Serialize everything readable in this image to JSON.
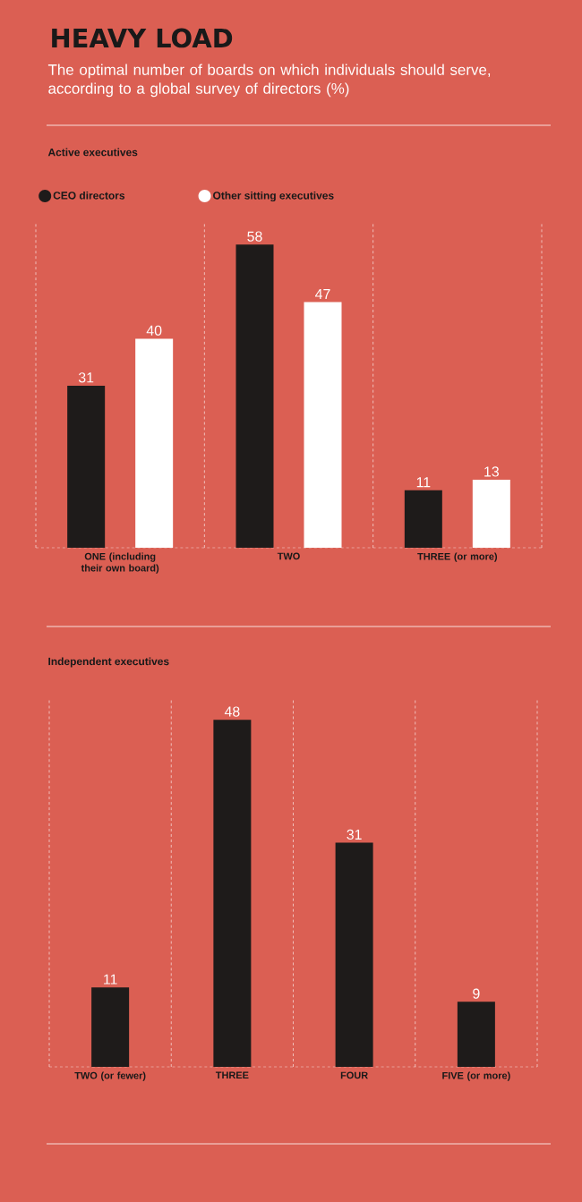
{
  "chart_data": [
    {
      "type": "bar",
      "title": "HEAVY LOAD",
      "subtitle": "The optimal number of boards on which individuals should serve, according to a global survey of directors (%)",
      "annotations": [
        "Active executives"
      ],
      "categories": [
        "ONE (including their own board)",
        "TWO",
        "THREE (or more)"
      ],
      "series": [
        {
          "name": "CEO directors",
          "color": "#1e1b1a",
          "values": [
            31,
            58,
            11
          ]
        },
        {
          "name": "Other sitting executives",
          "color": "#ffffff",
          "values": [
            40,
            47,
            13
          ]
        }
      ],
      "data_labels": true,
      "legend": "top left",
      "grid": "x",
      "ylim": [
        0,
        62
      ]
    },
    {
      "type": "bar",
      "title": "Independent executives",
      "categories": [
        "TWO (or fewer)",
        "THREE",
        "FOUR",
        "FIVE (or more)"
      ],
      "values": [
        11,
        48,
        31,
        9
      ],
      "color": "#1e1b1a",
      "data_labels": true,
      "grid": "x",
      "ylim": [
        0,
        51
      ]
    }
  ]
}
